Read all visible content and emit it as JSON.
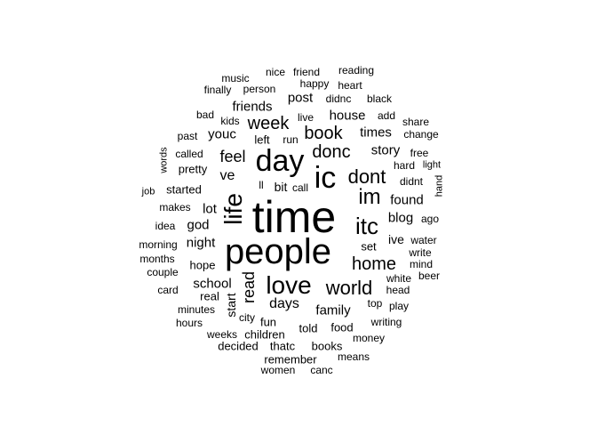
{
  "colors": {
    "background": "#ffffff",
    "text": "#000000"
  },
  "words": [
    {
      "text": "time",
      "vertical": false
    },
    {
      "text": "people",
      "vertical": false
    },
    {
      "text": "day",
      "vertical": false
    },
    {
      "text": "ic",
      "vertical": false
    },
    {
      "text": "love",
      "vertical": false
    },
    {
      "text": "itc",
      "vertical": false
    },
    {
      "text": "life",
      "vertical": true
    },
    {
      "text": "im",
      "vertical": false
    },
    {
      "text": "world",
      "vertical": false
    },
    {
      "text": "dont",
      "vertical": false
    },
    {
      "text": "home",
      "vertical": false
    },
    {
      "text": "donc",
      "vertical": false
    },
    {
      "text": "book",
      "vertical": false
    },
    {
      "text": "week",
      "vertical": false
    },
    {
      "text": "feel",
      "vertical": false
    },
    {
      "text": "read",
      "vertical": true
    },
    {
      "text": "days",
      "vertical": false
    },
    {
      "text": "family",
      "vertical": false
    },
    {
      "text": "ve",
      "vertical": false
    },
    {
      "text": "lot",
      "vertical": false
    },
    {
      "text": "god",
      "vertical": false
    },
    {
      "text": "blog",
      "vertical": false
    },
    {
      "text": "found",
      "vertical": false
    },
    {
      "text": "story",
      "vertical": false
    },
    {
      "text": "times",
      "vertical": false
    },
    {
      "text": "house",
      "vertical": false
    },
    {
      "text": "night",
      "vertical": false
    },
    {
      "text": "school",
      "vertical": false
    },
    {
      "text": "friends",
      "vertical": false
    },
    {
      "text": "post",
      "vertical": false
    },
    {
      "text": "youc",
      "vertical": false
    },
    {
      "text": "bit",
      "vertical": false
    },
    {
      "text": "start",
      "vertical": true
    },
    {
      "text": "ive",
      "vertical": false
    },
    {
      "text": "set",
      "vertical": false
    },
    {
      "text": "hope",
      "vertical": false
    },
    {
      "text": "pretty",
      "vertical": false
    },
    {
      "text": "started",
      "vertical": false
    },
    {
      "text": "left",
      "vertical": false
    },
    {
      "text": "real",
      "vertical": false
    },
    {
      "text": "head",
      "vertical": false
    },
    {
      "text": "mind",
      "vertical": false
    },
    {
      "text": "water",
      "vertical": false
    },
    {
      "text": "white",
      "vertical": false
    },
    {
      "text": "told",
      "vertical": false
    },
    {
      "text": "food",
      "vertical": false
    },
    {
      "text": "writing",
      "vertical": false
    },
    {
      "text": "top",
      "vertical": false
    },
    {
      "text": "fun",
      "vertical": false
    },
    {
      "text": "children",
      "vertical": false
    },
    {
      "text": "decided",
      "vertical": false
    },
    {
      "text": "thatc",
      "vertical": false
    },
    {
      "text": "books",
      "vertical": false
    },
    {
      "text": "remember",
      "vertical": false
    },
    {
      "text": "means",
      "vertical": false
    },
    {
      "text": "minutes",
      "vertical": false
    },
    {
      "text": "weeks",
      "vertical": false
    },
    {
      "text": "city",
      "vertical": false
    },
    {
      "text": "hours",
      "vertical": false
    },
    {
      "text": "card",
      "vertical": false
    },
    {
      "text": "couple",
      "vertical": false
    },
    {
      "text": "months",
      "vertical": false
    },
    {
      "text": "morning",
      "vertical": false
    },
    {
      "text": "idea",
      "vertical": false
    },
    {
      "text": "makes",
      "vertical": false
    },
    {
      "text": "job",
      "vertical": false
    },
    {
      "text": "words",
      "vertical": true
    },
    {
      "text": "called",
      "vertical": false
    },
    {
      "text": "past",
      "vertical": false
    },
    {
      "text": "kids",
      "vertical": false
    },
    {
      "text": "bad",
      "vertical": false
    },
    {
      "text": "finally",
      "vertical": false
    },
    {
      "text": "music",
      "vertical": false
    },
    {
      "text": "person",
      "vertical": false
    },
    {
      "text": "nice",
      "vertical": false
    },
    {
      "text": "friend",
      "vertical": false
    },
    {
      "text": "happy",
      "vertical": false
    },
    {
      "text": "reading",
      "vertical": false
    },
    {
      "text": "heart",
      "vertical": false
    },
    {
      "text": "didnc",
      "vertical": false
    },
    {
      "text": "black",
      "vertical": false
    },
    {
      "text": "live",
      "vertical": false
    },
    {
      "text": "run",
      "vertical": false
    },
    {
      "text": "add",
      "vertical": false
    },
    {
      "text": "share",
      "vertical": false
    },
    {
      "text": "change",
      "vertical": false
    },
    {
      "text": "free",
      "vertical": false
    },
    {
      "text": "hard",
      "vertical": false
    },
    {
      "text": "light",
      "vertical": false
    },
    {
      "text": "didnt",
      "vertical": false
    },
    {
      "text": "hand",
      "vertical": true
    },
    {
      "text": "ago",
      "vertical": false
    },
    {
      "text": "write",
      "vertical": false
    },
    {
      "text": "beer",
      "vertical": false
    },
    {
      "text": "play",
      "vertical": false
    },
    {
      "text": "money",
      "vertical": false
    },
    {
      "text": "women",
      "vertical": false
    },
    {
      "text": "canc",
      "vertical": false
    },
    {
      "text": "ll",
      "vertical": false
    },
    {
      "text": "call",
      "vertical": false
    }
  ]
}
